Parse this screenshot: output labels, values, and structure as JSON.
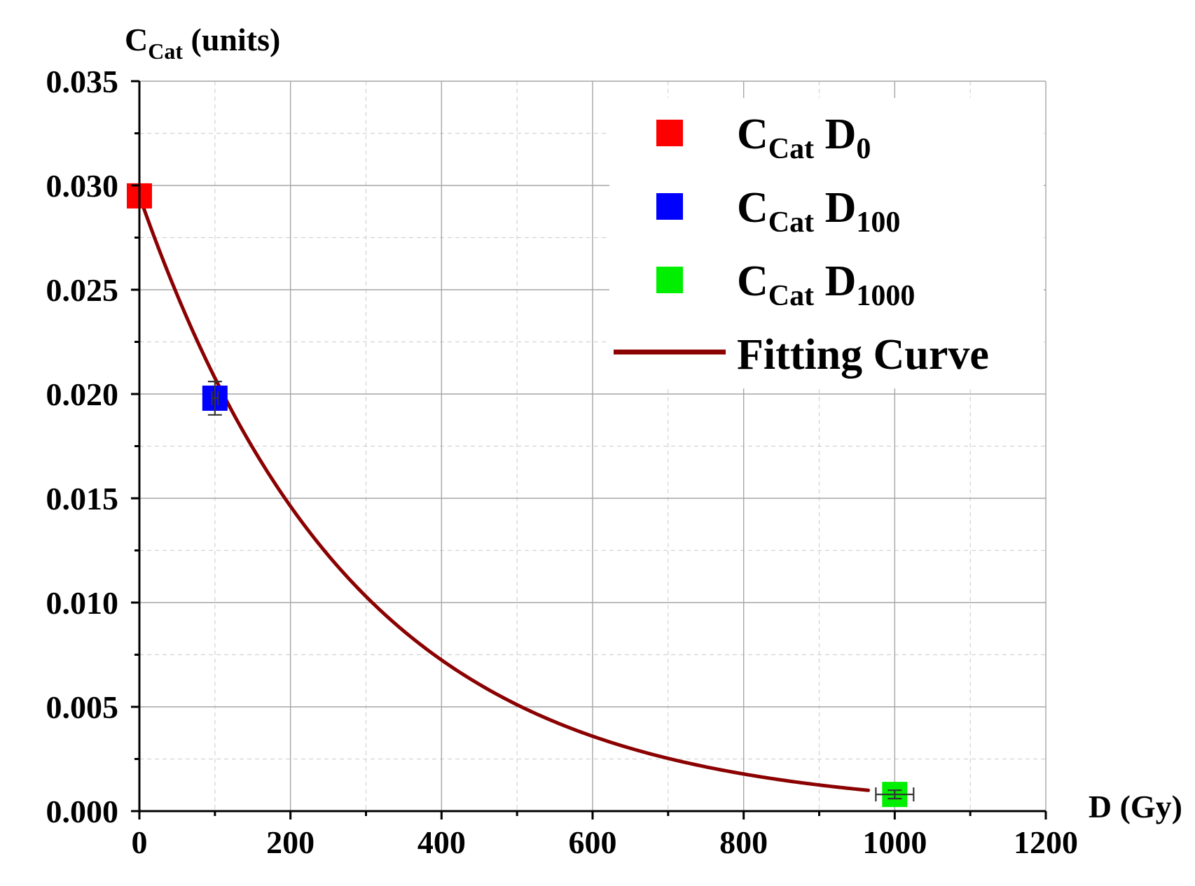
{
  "chart_data": {
    "type": "scatter",
    "title": "",
    "ylabel": {
      "main": "C",
      "sub": "Cat",
      "rest": " (units)"
    },
    "xlabel": "D (Gy)",
    "xlim": [
      0,
      1200
    ],
    "ylim": [
      0,
      0.035
    ],
    "x_major_ticks": [
      0,
      200,
      400,
      600,
      800,
      1000,
      1200
    ],
    "x_tick_labels": [
      "0",
      "200",
      "400",
      "600",
      "800",
      "1000",
      "1200"
    ],
    "x_minor_ticks": [
      100,
      300,
      500,
      700,
      900,
      1100
    ],
    "y_major_ticks": [
      0,
      0.005,
      0.01,
      0.015,
      0.02,
      0.025,
      0.03,
      0.035
    ],
    "y_tick_labels": [
      "0.000",
      "0.005",
      "0.010",
      "0.015",
      "0.020",
      "0.025",
      "0.030",
      "0.035"
    ],
    "y_minor_ticks": [
      0.0025,
      0.0075,
      0.0125,
      0.0175,
      0.0225,
      0.0275,
      0.0325
    ],
    "grid": true,
    "legend_position": "top-right",
    "series": [
      {
        "name": "CCat D0",
        "label_main": "C",
        "label_sub": "Cat",
        "label_d": " D",
        "label_dsub": "0",
        "color": "#ff0000",
        "marker": "square",
        "x": 0,
        "y": 0.0295,
        "xerr": 0,
        "yerr": 0
      },
      {
        "name": "CCat D100",
        "label_main": "C",
        "label_sub": "Cat",
        "label_d": " D",
        "label_dsub": "100",
        "color": "#0000ff",
        "marker": "square",
        "x": 100,
        "y": 0.0198,
        "xerr": 4,
        "yerr": 0.0008
      },
      {
        "name": "CCat D1000",
        "label_main": "C",
        "label_sub": "Cat",
        "label_d": " D",
        "label_dsub": "1000",
        "color": "#00ee00",
        "marker": "square",
        "x": 1000,
        "y": 0.0008,
        "xerr": 25,
        "yerr": 0.0002
      }
    ],
    "fit": {
      "name": "Fitting Curve",
      "type": "exponential decay",
      "color": "#8b0000",
      "A": 0.0295,
      "k": 0.00351,
      "x_range": [
        0,
        965
      ]
    }
  }
}
